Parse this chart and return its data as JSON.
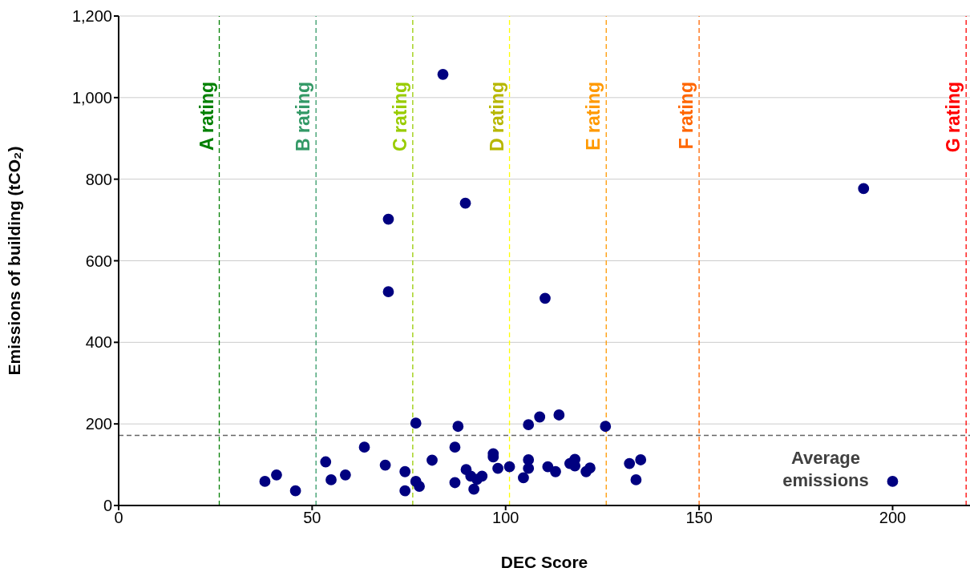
{
  "chart_data": {
    "type": "scatter",
    "xlabel": "DEC Score",
    "ylabel": "Emissions of building (tCO₂)",
    "xlim": [
      0,
      220
    ],
    "xticks": [
      0,
      50,
      100,
      150,
      200
    ],
    "ylim": [
      0,
      1200
    ],
    "yticks": [
      0,
      {
        "value": 200,
        "label": "200"
      },
      {
        "value": 400,
        "label": "400"
      },
      {
        "value": 600,
        "label": "600"
      },
      {
        "value": 800,
        "label": "800"
      },
      {
        "value": 1000,
        "label": "1,000"
      },
      {
        "value": 1200,
        "label": "1,200"
      }
    ],
    "grid": "y",
    "marker": "circle",
    "legend": false,
    "series": [
      {
        "color": "#000080",
        "x": [
          37.8,
          40.8,
          45.7,
          53.5,
          54.9,
          58.6,
          63.5,
          68.9,
          74,
          74,
          76.8,
          76.8,
          77.7,
          81,
          86.9,
          87.7,
          86.9,
          89.8,
          91,
          91.8,
          92.6,
          93.9,
          96.8,
          96.8,
          98,
          101,
          105.9,
          108.8,
          113.8,
          125.8,
          105.9,
          105.9,
          104.6,
          110.9,
          112.9,
          116.6,
          117.9,
          117.9,
          120.8,
          121.8,
          132,
          134.9,
          133.7,
          83.8,
          69.7,
          69.7,
          89.6,
          110.2,
          192.5,
          200
        ],
        "values": [
          59,
          75,
          36,
          107,
          63,
          75,
          143,
          99,
          83,
          36,
          202,
          59,
          47,
          111,
          143,
          194,
          56,
          88,
          72,
          40,
          64,
          72,
          127,
          119,
          91,
          95,
          198,
          217,
          222,
          194,
          112,
          91,
          68,
          95,
          83,
          103,
          113,
          97,
          83,
          92,
          103,
          112,
          63,
          1057,
          702,
          524,
          741,
          508,
          777,
          59
        ]
      }
    ],
    "ref_lines": [
      {
        "axis": "x",
        "value": 26,
        "label": "A rating",
        "color": "#008000",
        "line_style": "dashed"
      },
      {
        "axis": "x",
        "value": 51,
        "label": "B rating",
        "color": "#339966",
        "line_style": "dashed"
      },
      {
        "axis": "x",
        "value": 76,
        "label": "C rating",
        "color": "#99cc00",
        "line_style": "dashed"
      },
      {
        "axis": "x",
        "value": 101,
        "label": "D rating",
        "color": "#ffff00",
        "line_style": "dashed"
      },
      {
        "axis": "x",
        "value": 126,
        "label": "E rating",
        "color": "#ff9900",
        "line_style": "dashed"
      },
      {
        "axis": "x",
        "value": 150,
        "label": "F rating",
        "color": "#ff6600",
        "line_style": "dashed"
      },
      {
        "axis": "x",
        "value": 219,
        "label": "G rating",
        "color": "#ff0000",
        "line_style": "dashed"
      },
      {
        "axis": "y",
        "value": 172,
        "label": "Average emissions",
        "color": "#666666",
        "line_style": "dashed"
      }
    ]
  }
}
